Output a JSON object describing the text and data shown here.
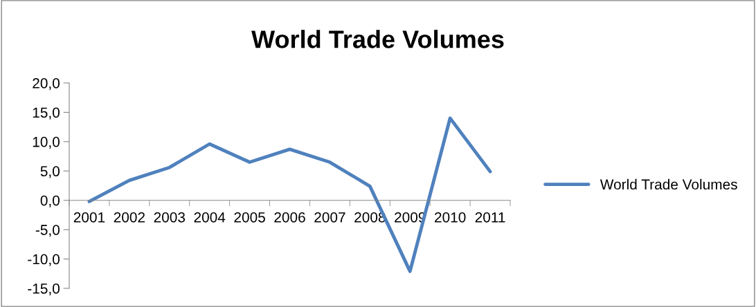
{
  "chart_data": {
    "type": "line",
    "title": "World Trade Volumes",
    "categories": [
      "2001",
      "2002",
      "2003",
      "2004",
      "2005",
      "2006",
      "2007",
      "2008",
      "2009",
      "2010",
      "2011"
    ],
    "series": [
      {
        "name": "World Trade Volumes",
        "color": "#4f81bd",
        "values": [
          -0.2,
          3.4,
          5.6,
          9.6,
          6.5,
          8.7,
          6.5,
          2.4,
          -12.1,
          14.0,
          4.9
        ]
      }
    ],
    "ylim": [
      -15,
      20
    ],
    "yticks": [
      {
        "value": -15,
        "label": "-15,0"
      },
      {
        "value": -10,
        "label": "-10,0"
      },
      {
        "value": -5,
        "label": "-5,0"
      },
      {
        "value": 0,
        "label": "0,0"
      },
      {
        "value": 5,
        "label": "5,0"
      },
      {
        "value": 10,
        "label": "10,0"
      },
      {
        "value": 15,
        "label": "15,0"
      },
      {
        "value": 20,
        "label": "20,0"
      }
    ],
    "grid": false,
    "legend": "right",
    "marker": "none",
    "line_style": "solid"
  }
}
